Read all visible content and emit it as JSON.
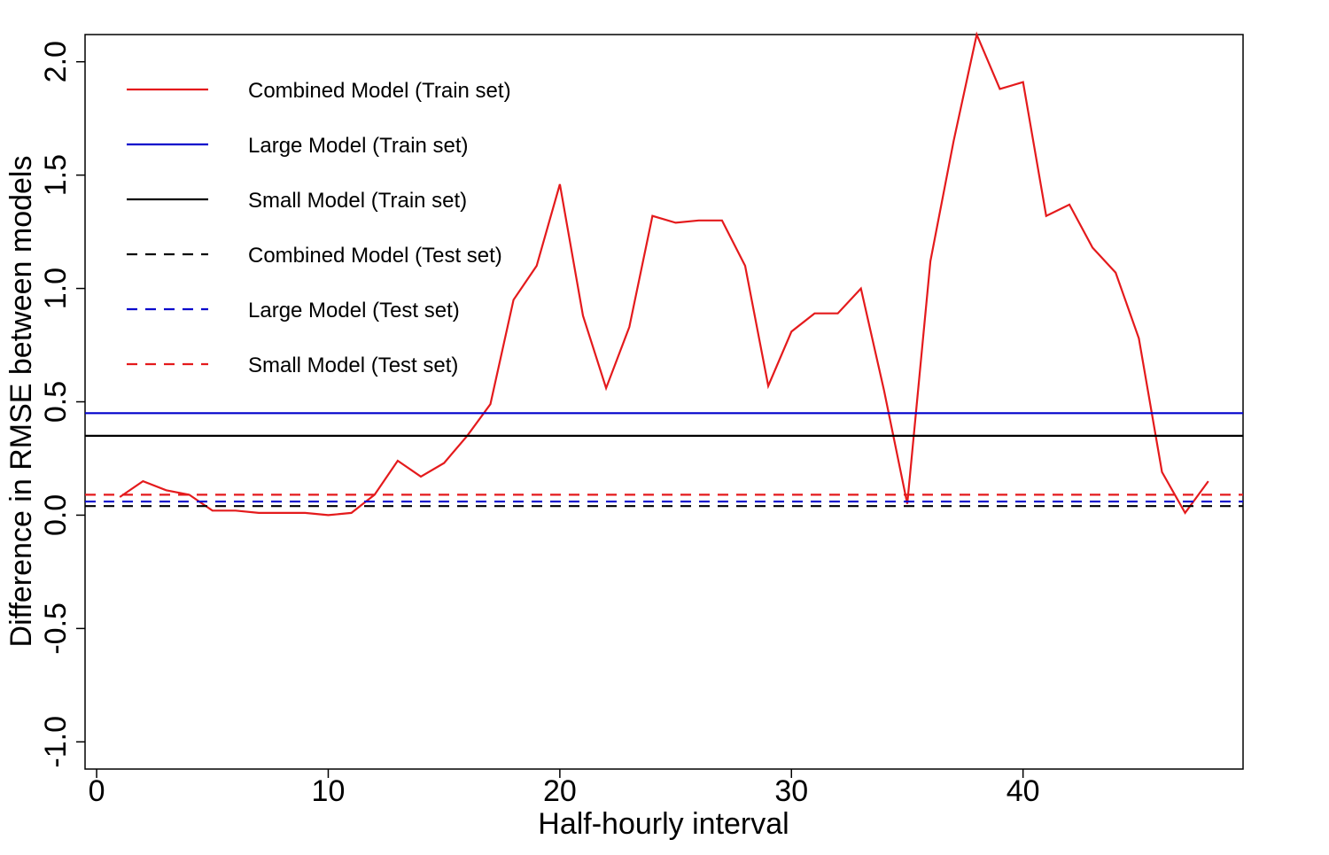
{
  "chart_data": {
    "type": "line",
    "title": "",
    "xlabel": "Half-hourly interval",
    "ylabel": "Difference in RMSE between models",
    "xlim": [
      -0.5,
      49.5
    ],
    "ylim": [
      -1.12,
      2.12
    ],
    "xticks": [
      0,
      10,
      20,
      30,
      40
    ],
    "xtick_labels": [
      "0",
      "10",
      "20",
      "30",
      "40"
    ],
    "yticks": [
      -1.0,
      -0.5,
      0.0,
      0.5,
      1.0,
      1.5,
      2.0
    ],
    "ytick_labels": [
      "-1.0",
      "-0.5",
      "0.0",
      "0.5",
      "1.0",
      "1.5",
      "2.0"
    ],
    "grid": false,
    "legend_position": "top-left",
    "series": [
      {
        "name": "Combined Model (Train set)",
        "color": "#e41a1c",
        "style": "solid",
        "x": [
          1,
          2,
          3,
          4,
          5,
          6,
          7,
          8,
          9,
          10,
          11,
          12,
          13,
          14,
          15,
          16,
          17,
          18,
          19,
          20,
          21,
          22,
          23,
          24,
          25,
          26,
          27,
          28,
          29,
          30,
          31,
          32,
          33,
          34,
          35,
          36,
          37,
          38,
          39,
          40,
          41,
          42,
          43,
          44,
          45,
          46,
          47,
          48
        ],
        "y": [
          0.08,
          0.15,
          0.11,
          0.09,
          0.02,
          0.02,
          0.01,
          0.01,
          0.01,
          0.0,
          0.01,
          0.09,
          0.24,
          0.17,
          0.23,
          0.35,
          0.49,
          0.95,
          1.1,
          1.46,
          0.88,
          0.56,
          0.83,
          1.32,
          1.29,
          1.3,
          1.3,
          1.1,
          0.57,
          0.81,
          0.89,
          0.89,
          1.0,
          0.55,
          0.05,
          1.12,
          1.65,
          2.12,
          1.88,
          1.91,
          1.32,
          1.37,
          1.18,
          1.07,
          0.78,
          0.19,
          0.01,
          0.15
        ]
      },
      {
        "name": "Large Model (Train set)",
        "color": "#0000cc",
        "style": "solid",
        "constant": 0.45
      },
      {
        "name": "Small Model (Train set)",
        "color": "#000000",
        "style": "solid",
        "constant": 0.35
      },
      {
        "name": "Combined Model (Test set)",
        "color": "#000000",
        "style": "dashed",
        "constant": 0.04
      },
      {
        "name": "Large Model (Test set)",
        "color": "#0000cc",
        "style": "dashed",
        "constant": 0.06
      },
      {
        "name": "Small Model (Test set)",
        "color": "#e41a1c",
        "style": "dashed",
        "constant": 0.09
      }
    ]
  }
}
